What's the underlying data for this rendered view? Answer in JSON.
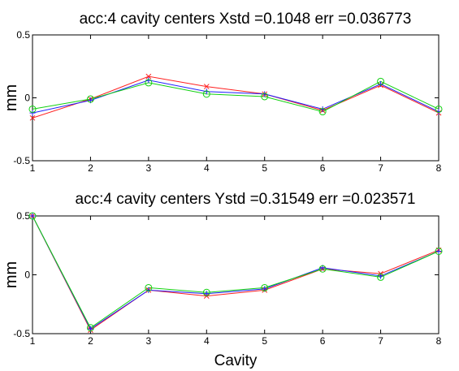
{
  "chart_data": [
    {
      "type": "line",
      "title": "acc:4 cavity centers Xstd =0.1048  err =0.036773",
      "ylabel": "mm",
      "xlabel": "",
      "ylim": [
        -0.5,
        0.5
      ],
      "xlim": [
        1,
        8
      ],
      "x": [
        1,
        2,
        3,
        4,
        5,
        6,
        7,
        8
      ],
      "xticks": [
        "1",
        "2",
        "3",
        "4",
        "5",
        "6",
        "7",
        "8"
      ],
      "yticks": [
        "-0.5",
        "0",
        "0.5"
      ],
      "series": [
        {
          "color": "#ff2020",
          "marker": "x",
          "values": [
            -0.16,
            -0.01,
            0.17,
            0.09,
            0.03,
            -0.1,
            0.1,
            -0.12
          ]
        },
        {
          "color": "#2020ff",
          "marker": "plus",
          "values": [
            -0.12,
            -0.02,
            0.14,
            0.05,
            0.03,
            -0.09,
            0.11,
            -0.11
          ]
        },
        {
          "color": "#10d010",
          "marker": "circle",
          "values": [
            -0.09,
            -0.01,
            0.12,
            0.03,
            0.01,
            -0.11,
            0.13,
            -0.09
          ]
        }
      ]
    },
    {
      "type": "line",
      "title": "acc:4 cavity centers Ystd =0.31549  err =0.023571",
      "ylabel": "mm",
      "xlabel": "Cavity",
      "ylim": [
        -0.5,
        0.5
      ],
      "xlim": [
        1,
        8
      ],
      "x": [
        1,
        2,
        3,
        4,
        5,
        6,
        7,
        8
      ],
      "xticks": [
        "1",
        "2",
        "3",
        "4",
        "5",
        "6",
        "7",
        "8"
      ],
      "yticks": [
        "-0.5",
        "0",
        "0.5"
      ],
      "series": [
        {
          "color": "#ff2020",
          "marker": "x",
          "values": [
            0.5,
            -0.47,
            -0.13,
            -0.18,
            -0.13,
            0.05,
            0.01,
            0.21
          ]
        },
        {
          "color": "#2020ff",
          "marker": "plus",
          "values": [
            0.5,
            -0.46,
            -0.13,
            -0.16,
            -0.12,
            0.06,
            -0.01,
            0.2
          ]
        },
        {
          "color": "#10d010",
          "marker": "circle",
          "values": [
            0.5,
            -0.45,
            -0.11,
            -0.15,
            -0.11,
            0.05,
            -0.02,
            0.2
          ]
        }
      ]
    }
  ]
}
